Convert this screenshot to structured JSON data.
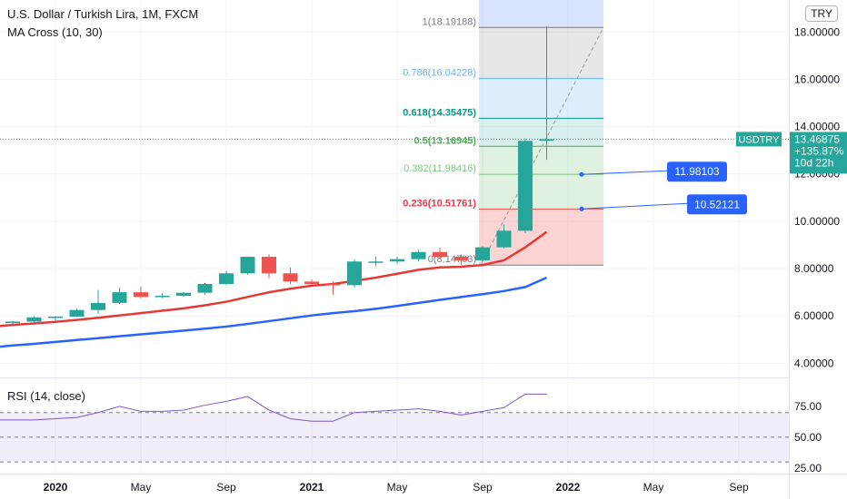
{
  "header": {
    "title": "U.S. Dollar / Turkish Lira, 1M, FXCM",
    "indicator": "MA Cross (10, 30)",
    "currency": "TRY"
  },
  "price_tag": {
    "symbol": "USDTRY",
    "price": "13.46875",
    "change": "+135.87%",
    "countdown": "10d 22h"
  },
  "callouts": [
    {
      "label": "11.98103",
      "value": 11.98103
    },
    {
      "label": "10.52121",
      "value": 10.52121
    }
  ],
  "rsi": {
    "label": "RSI (14, close)"
  },
  "colors": {
    "up": "#26a69a",
    "down": "#ef5350",
    "ma_fast": "#e53935",
    "ma_slow": "#2962ff",
    "rsi": "#7e57c2",
    "callout": "#2962ff"
  },
  "chart_data": [
    {
      "type": "candlestick",
      "title": "U.S. Dollar / Turkish Lira, 1M, FXCM",
      "x_tick_labels": [
        "2020",
        "May",
        "Sep",
        "2021",
        "May",
        "Sep",
        "2022",
        "May",
        "Sep"
      ],
      "y_tick_labels": [
        "4.00000",
        "6.00000",
        "8.00000",
        "10.00000",
        "12.00000",
        "14.00000",
        "16.00000",
        "18.00000"
      ],
      "ylim": [
        3.4,
        19.2
      ],
      "months": [
        "2019-11",
        "2019-12",
        "2020-01",
        "2020-02",
        "2020-03",
        "2020-04",
        "2020-05",
        "2020-06",
        "2020-07",
        "2020-08",
        "2020-09",
        "2020-10",
        "2020-11",
        "2020-12",
        "2021-01",
        "2021-02",
        "2021-03",
        "2021-04",
        "2021-05",
        "2021-06",
        "2021-07",
        "2021-08",
        "2021-09",
        "2021-10",
        "2021-11",
        "2021-12"
      ],
      "ohlc": [
        [
          5.7,
          5.8,
          5.65,
          5.76
        ],
        [
          5.76,
          5.98,
          5.7,
          5.94
        ],
        [
          5.94,
          6.0,
          5.8,
          5.97
        ],
        [
          5.97,
          6.3,
          5.95,
          6.25
        ],
        [
          6.25,
          7.1,
          6.1,
          6.55
        ],
        [
          6.55,
          7.2,
          6.5,
          7.0
        ],
        [
          7.0,
          7.25,
          6.75,
          6.8
        ],
        [
          6.8,
          6.95,
          6.75,
          6.85
        ],
        [
          6.85,
          7.0,
          6.8,
          6.98
        ],
        [
          6.98,
          7.4,
          6.9,
          7.35
        ],
        [
          7.35,
          7.9,
          7.3,
          7.8
        ],
        [
          7.8,
          8.5,
          7.75,
          8.5
        ],
        [
          8.5,
          8.6,
          7.6,
          7.8
        ],
        [
          7.8,
          8.05,
          7.35,
          7.45
        ],
        [
          7.45,
          7.55,
          7.3,
          7.35
        ],
        [
          7.35,
          7.45,
          6.9,
          7.3
        ],
        [
          7.3,
          8.4,
          7.2,
          8.3
        ],
        [
          8.3,
          8.5,
          8.1,
          8.3
        ],
        [
          8.3,
          8.5,
          8.2,
          8.4
        ],
        [
          8.4,
          8.8,
          8.3,
          8.7
        ],
        [
          8.7,
          8.9,
          8.4,
          8.5
        ],
        [
          8.5,
          8.6,
          8.15,
          8.35
        ],
        [
          8.35,
          8.95,
          8.3,
          8.9
        ],
        [
          8.9,
          9.85,
          8.85,
          9.6
        ],
        [
          9.6,
          13.5,
          9.5,
          13.4
        ],
        [
          13.4,
          18.25,
          12.6,
          13.47
        ]
      ],
      "ma_fast_10": [
        5.62,
        5.68,
        5.75,
        5.83,
        5.92,
        6.02,
        6.12,
        6.22,
        6.32,
        6.45,
        6.6,
        6.8,
        7.0,
        7.15,
        7.28,
        7.35,
        7.48,
        7.62,
        7.78,
        7.95,
        8.05,
        8.08,
        8.15,
        8.35,
        8.9,
        9.55
      ],
      "ma_slow_30": [
        4.75,
        4.82,
        4.9,
        4.98,
        5.06,
        5.14,
        5.22,
        5.3,
        5.38,
        5.46,
        5.55,
        5.66,
        5.78,
        5.9,
        6.02,
        6.12,
        6.2,
        6.3,
        6.42,
        6.55,
        6.68,
        6.8,
        6.92,
        7.05,
        7.22,
        7.62
      ]
    },
    {
      "type": "fibonacci",
      "levels": [
        {
          "ratio": "0",
          "value": 8.14703,
          "label": "0(8.14703)"
        },
        {
          "ratio": "0.236",
          "value": 10.51761,
          "label": "0.236(10.51761)"
        },
        {
          "ratio": "0.382",
          "value": 11.98416,
          "label": "0.382(11.98416)"
        },
        {
          "ratio": "0.5",
          "value": 13.16945,
          "label": "0.5(13.16945)"
        },
        {
          "ratio": "0.618",
          "value": 14.35475,
          "label": "0.618(14.35475)"
        },
        {
          "ratio": "0.786",
          "value": 16.04228,
          "label": "0.786(16.04228)"
        },
        {
          "ratio": "1",
          "value": 18.19188,
          "label": "1(18.19188)"
        }
      ]
    },
    {
      "type": "line",
      "title": "RSI (14, close)",
      "y_tick_labels": [
        "25.00",
        "50.00",
        "75.00"
      ],
      "ylim": [
        22,
        97
      ],
      "bands": [
        30,
        70
      ],
      "values": [
        64,
        64,
        65,
        66,
        70,
        75,
        71,
        71,
        72,
        76,
        79,
        83,
        72,
        65,
        63,
        63,
        70,
        71,
        72,
        73,
        71,
        68,
        71,
        74,
        85,
        85
      ]
    }
  ]
}
